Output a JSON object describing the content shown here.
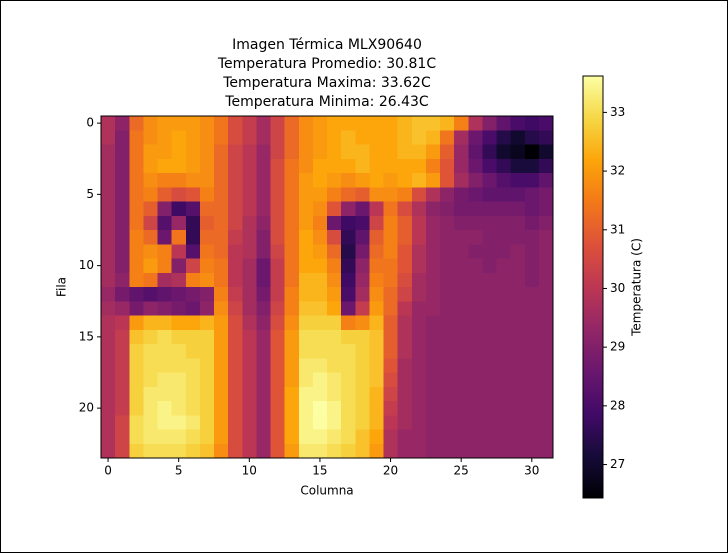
{
  "chart_data": {
    "type": "heatmap",
    "title": [
      "Imagen Térmica MLX90640",
      "Temperatura Promedio: 30.81C",
      "Temperatura Maxima: 33.62C",
      "Temperatura Minima: 26.43C"
    ],
    "x_label": "Columna",
    "y_label": "Fila",
    "colorbar_label": "Temperatura (C)",
    "colormap": "inferno",
    "xlim": [
      -0.5,
      31.5
    ],
    "ylim": [
      23.5,
      -0.5
    ],
    "xticks": [
      0,
      5,
      10,
      15,
      20,
      25,
      30
    ],
    "yticks": [
      0,
      5,
      10,
      15,
      20
    ],
    "clim": [
      26.43,
      33.62
    ],
    "cticks": [
      27,
      28,
      29,
      30,
      31,
      32,
      33
    ],
    "z": [
      [
        29.8,
        29.2,
        31.2,
        31.8,
        32.0,
        32.0,
        32.0,
        31.8,
        31.4,
        30.6,
        30.2,
        29.6,
        30.4,
        31.2,
        31.8,
        32.0,
        32.2,
        32.2,
        32.2,
        32.2,
        32.2,
        32.4,
        32.6,
        32.6,
        32.4,
        31.6,
        29.8,
        29.0,
        28.4,
        28.0,
        27.8,
        28.0
      ],
      [
        29.8,
        29.0,
        31.4,
        31.8,
        32.0,
        32.2,
        32.0,
        31.8,
        31.4,
        30.6,
        30.2,
        29.6,
        30.4,
        31.2,
        31.8,
        32.0,
        32.2,
        32.4,
        32.2,
        32.2,
        32.2,
        32.4,
        32.6,
        32.4,
        31.4,
        29.6,
        28.6,
        28.0,
        27.4,
        27.0,
        27.4,
        27.6
      ],
      [
        29.6,
        29.0,
        31.4,
        32.0,
        32.0,
        32.2,
        32.0,
        31.8,
        31.2,
        30.4,
        30.0,
        29.4,
        30.4,
        31.2,
        31.8,
        32.0,
        32.2,
        32.4,
        32.4,
        32.2,
        32.2,
        32.4,
        32.4,
        32.0,
        31.0,
        29.4,
        28.4,
        27.6,
        27.0,
        26.8,
        26.43,
        27.0
      ],
      [
        29.6,
        29.0,
        31.4,
        32.0,
        32.2,
        32.2,
        32.0,
        31.8,
        31.2,
        30.4,
        30.0,
        29.4,
        30.6,
        31.4,
        31.8,
        32.2,
        32.2,
        32.2,
        32.4,
        32.2,
        32.2,
        32.2,
        32.2,
        31.6,
        30.8,
        29.4,
        28.6,
        28.0,
        27.6,
        27.2,
        27.2,
        27.6
      ],
      [
        29.6,
        29.0,
        31.4,
        31.8,
        31.6,
        31.6,
        31.8,
        31.8,
        31.2,
        30.4,
        30.0,
        29.4,
        30.6,
        31.4,
        32.0,
        32.2,
        32.0,
        31.8,
        32.0,
        32.2,
        32.0,
        32.2,
        32.4,
        32.0,
        30.8,
        29.6,
        29.0,
        28.6,
        28.2,
        28.0,
        28.0,
        28.4
      ],
      [
        29.6,
        29.0,
        31.4,
        31.6,
        31.0,
        30.6,
        30.8,
        31.6,
        31.2,
        30.4,
        30.0,
        29.4,
        30.6,
        31.4,
        32.0,
        32.0,
        31.6,
        31.2,
        31.0,
        31.8,
        31.8,
        31.6,
        30.6,
        29.8,
        29.2,
        28.8,
        28.6,
        28.4,
        28.4,
        28.4,
        28.6,
        28.8
      ],
      [
        29.6,
        29.0,
        31.4,
        31.0,
        29.0,
        27.8,
        28.2,
        31.2,
        31.2,
        30.4,
        30.0,
        29.4,
        30.6,
        31.4,
        32.0,
        31.8,
        30.8,
        29.2,
        28.6,
        30.0,
        31.4,
        30.6,
        29.8,
        29.2,
        29.0,
        28.8,
        28.8,
        28.8,
        28.8,
        28.8,
        28.6,
        28.8
      ],
      [
        29.6,
        29.0,
        31.4,
        30.4,
        28.2,
        29.4,
        27.6,
        31.0,
        31.2,
        30.4,
        29.8,
        29.2,
        30.6,
        31.4,
        32.0,
        31.6,
        28.6,
        27.8,
        28.0,
        30.4,
        31.6,
        31.0,
        30.0,
        29.4,
        29.2,
        29.0,
        29.0,
        29.0,
        29.0,
        29.0,
        28.8,
        29.0
      ],
      [
        29.6,
        29.0,
        31.6,
        31.2,
        28.6,
        31.4,
        27.6,
        31.2,
        31.2,
        30.2,
        29.8,
        29.0,
        30.6,
        31.4,
        32.2,
        31.8,
        30.6,
        27.6,
        28.4,
        31.0,
        31.6,
        31.0,
        30.0,
        29.4,
        29.2,
        29.2,
        29.2,
        29.0,
        29.0,
        29.0,
        29.0,
        29.2
      ],
      [
        29.6,
        29.0,
        31.6,
        31.8,
        31.6,
        30.0,
        28.2,
        31.4,
        31.2,
        30.0,
        29.8,
        29.0,
        30.4,
        31.4,
        32.2,
        32.0,
        31.2,
        27.4,
        28.8,
        31.2,
        31.6,
        30.8,
        29.8,
        29.4,
        29.2,
        29.2,
        29.0,
        29.0,
        29.0,
        29.2,
        29.0,
        29.2
      ],
      [
        29.6,
        29.0,
        31.6,
        32.0,
        31.6,
        29.0,
        30.4,
        31.6,
        31.4,
        30.0,
        29.6,
        28.6,
        30.2,
        31.4,
        32.2,
        32.2,
        31.6,
        27.6,
        29.2,
        31.4,
        31.4,
        30.8,
        29.8,
        29.4,
        29.2,
        29.2,
        29.2,
        29.0,
        29.2,
        29.2,
        29.0,
        29.2
      ],
      [
        29.6,
        29.2,
        31.6,
        31.4,
        29.6,
        29.8,
        31.6,
        31.8,
        31.4,
        30.0,
        29.6,
        28.6,
        30.2,
        31.4,
        32.4,
        32.4,
        31.8,
        27.8,
        29.4,
        31.6,
        31.4,
        30.6,
        29.6,
        29.4,
        29.2,
        29.2,
        29.2,
        29.2,
        29.2,
        29.2,
        29.0,
        29.2
      ],
      [
        29.4,
        28.8,
        28.4,
        28.2,
        28.4,
        28.6,
        28.8,
        29.0,
        31.6,
        30.2,
        29.6,
        28.8,
        30.2,
        31.6,
        32.4,
        32.4,
        32.0,
        28.0,
        29.6,
        31.8,
        31.2,
        30.4,
        29.6,
        29.4,
        29.2,
        29.2,
        29.2,
        29.2,
        29.2,
        29.2,
        29.2,
        29.2
      ],
      [
        29.6,
        29.4,
        28.8,
        29.2,
        29.0,
        28.8,
        28.6,
        29.2,
        31.8,
        30.4,
        29.6,
        29.0,
        30.4,
        31.6,
        32.6,
        32.6,
        32.2,
        28.6,
        30.2,
        32.0,
        31.2,
        30.0,
        29.4,
        29.4,
        29.2,
        29.2,
        29.2,
        29.2,
        29.2,
        29.2,
        29.2,
        29.2
      ],
      [
        29.8,
        30.0,
        32.0,
        32.4,
        32.4,
        32.2,
        32.2,
        32.4,
        32.0,
        30.6,
        29.8,
        29.2,
        30.6,
        31.8,
        32.8,
        32.8,
        32.8,
        31.6,
        31.8,
        32.4,
        31.0,
        29.8,
        29.4,
        29.2,
        29.2,
        29.2,
        29.2,
        29.2,
        29.2,
        29.2,
        29.2,
        29.2
      ],
      [
        29.8,
        30.2,
        32.6,
        32.8,
        33.0,
        32.8,
        32.8,
        32.8,
        32.0,
        30.6,
        30.0,
        29.4,
        30.8,
        32.0,
        33.0,
        33.0,
        33.0,
        32.8,
        32.8,
        32.6,
        31.0,
        29.8,
        29.4,
        29.2,
        29.2,
        29.2,
        29.2,
        29.2,
        29.2,
        29.2,
        29.2,
        29.2
      ],
      [
        29.8,
        30.2,
        32.8,
        33.0,
        33.0,
        33.0,
        32.8,
        32.8,
        32.0,
        30.6,
        30.0,
        29.4,
        30.8,
        32.0,
        33.0,
        33.0,
        33.0,
        33.0,
        32.8,
        32.6,
        31.0,
        29.8,
        29.4,
        29.2,
        29.2,
        29.2,
        29.2,
        29.2,
        29.2,
        29.2,
        29.2,
        29.2
      ],
      [
        29.8,
        30.2,
        32.8,
        33.0,
        33.0,
        33.0,
        33.0,
        32.8,
        32.0,
        30.6,
        30.0,
        29.4,
        30.8,
        32.0,
        33.2,
        33.2,
        33.0,
        33.0,
        32.8,
        32.6,
        30.8,
        29.6,
        29.4,
        29.2,
        29.2,
        29.2,
        29.2,
        29.2,
        29.2,
        29.2,
        29.2,
        29.2
      ],
      [
        29.8,
        30.2,
        32.8,
        33.0,
        33.2,
        33.2,
        33.0,
        32.8,
        32.0,
        30.6,
        30.0,
        29.4,
        30.8,
        32.0,
        33.2,
        33.4,
        33.2,
        33.0,
        32.8,
        32.6,
        30.6,
        29.6,
        29.4,
        29.2,
        29.2,
        29.2,
        29.2,
        29.2,
        29.2,
        29.2,
        29.2,
        29.2
      ],
      [
        29.8,
        30.2,
        32.8,
        33.2,
        33.2,
        33.2,
        33.0,
        32.8,
        32.0,
        30.6,
        30.0,
        29.4,
        30.8,
        32.2,
        33.4,
        33.4,
        33.2,
        33.0,
        32.8,
        32.4,
        30.4,
        29.6,
        29.4,
        29.2,
        29.2,
        29.2,
        29.2,
        29.2,
        29.2,
        29.2,
        29.2,
        29.2
      ],
      [
        29.8,
        30.2,
        32.8,
        33.2,
        33.4,
        33.2,
        33.0,
        32.8,
        32.0,
        30.6,
        30.0,
        29.4,
        30.8,
        32.2,
        33.4,
        33.62,
        33.4,
        33.0,
        32.8,
        32.4,
        30.2,
        29.6,
        29.4,
        29.2,
        29.2,
        29.2,
        29.2,
        29.2,
        29.2,
        29.2,
        29.2,
        29.2
      ],
      [
        29.8,
        30.4,
        33.0,
        33.2,
        33.4,
        33.4,
        33.2,
        32.8,
        32.0,
        30.6,
        30.0,
        29.4,
        30.8,
        32.2,
        33.4,
        33.6,
        33.4,
        33.0,
        32.8,
        32.4,
        30.0,
        29.6,
        29.4,
        29.2,
        29.2,
        29.2,
        29.2,
        29.2,
        29.2,
        29.2,
        29.2,
        29.2
      ],
      [
        29.8,
        30.4,
        33.0,
        33.2,
        33.2,
        33.2,
        33.0,
        32.8,
        32.0,
        30.6,
        30.0,
        29.4,
        30.8,
        32.2,
        33.4,
        33.4,
        33.2,
        33.0,
        32.6,
        32.2,
        29.8,
        29.4,
        29.4,
        29.2,
        29.2,
        29.2,
        29.2,
        29.2,
        29.2,
        29.2,
        29.2,
        29.2
      ],
      [
        29.8,
        30.4,
        32.8,
        33.0,
        33.0,
        33.0,
        32.8,
        32.6,
        31.8,
        30.6,
        30.0,
        29.4,
        30.8,
        32.0,
        33.2,
        33.2,
        33.0,
        32.8,
        32.6,
        32.0,
        29.8,
        29.4,
        29.4,
        29.2,
        29.2,
        29.2,
        29.2,
        29.2,
        29.2,
        29.2,
        29.2,
        29.2
      ]
    ]
  }
}
